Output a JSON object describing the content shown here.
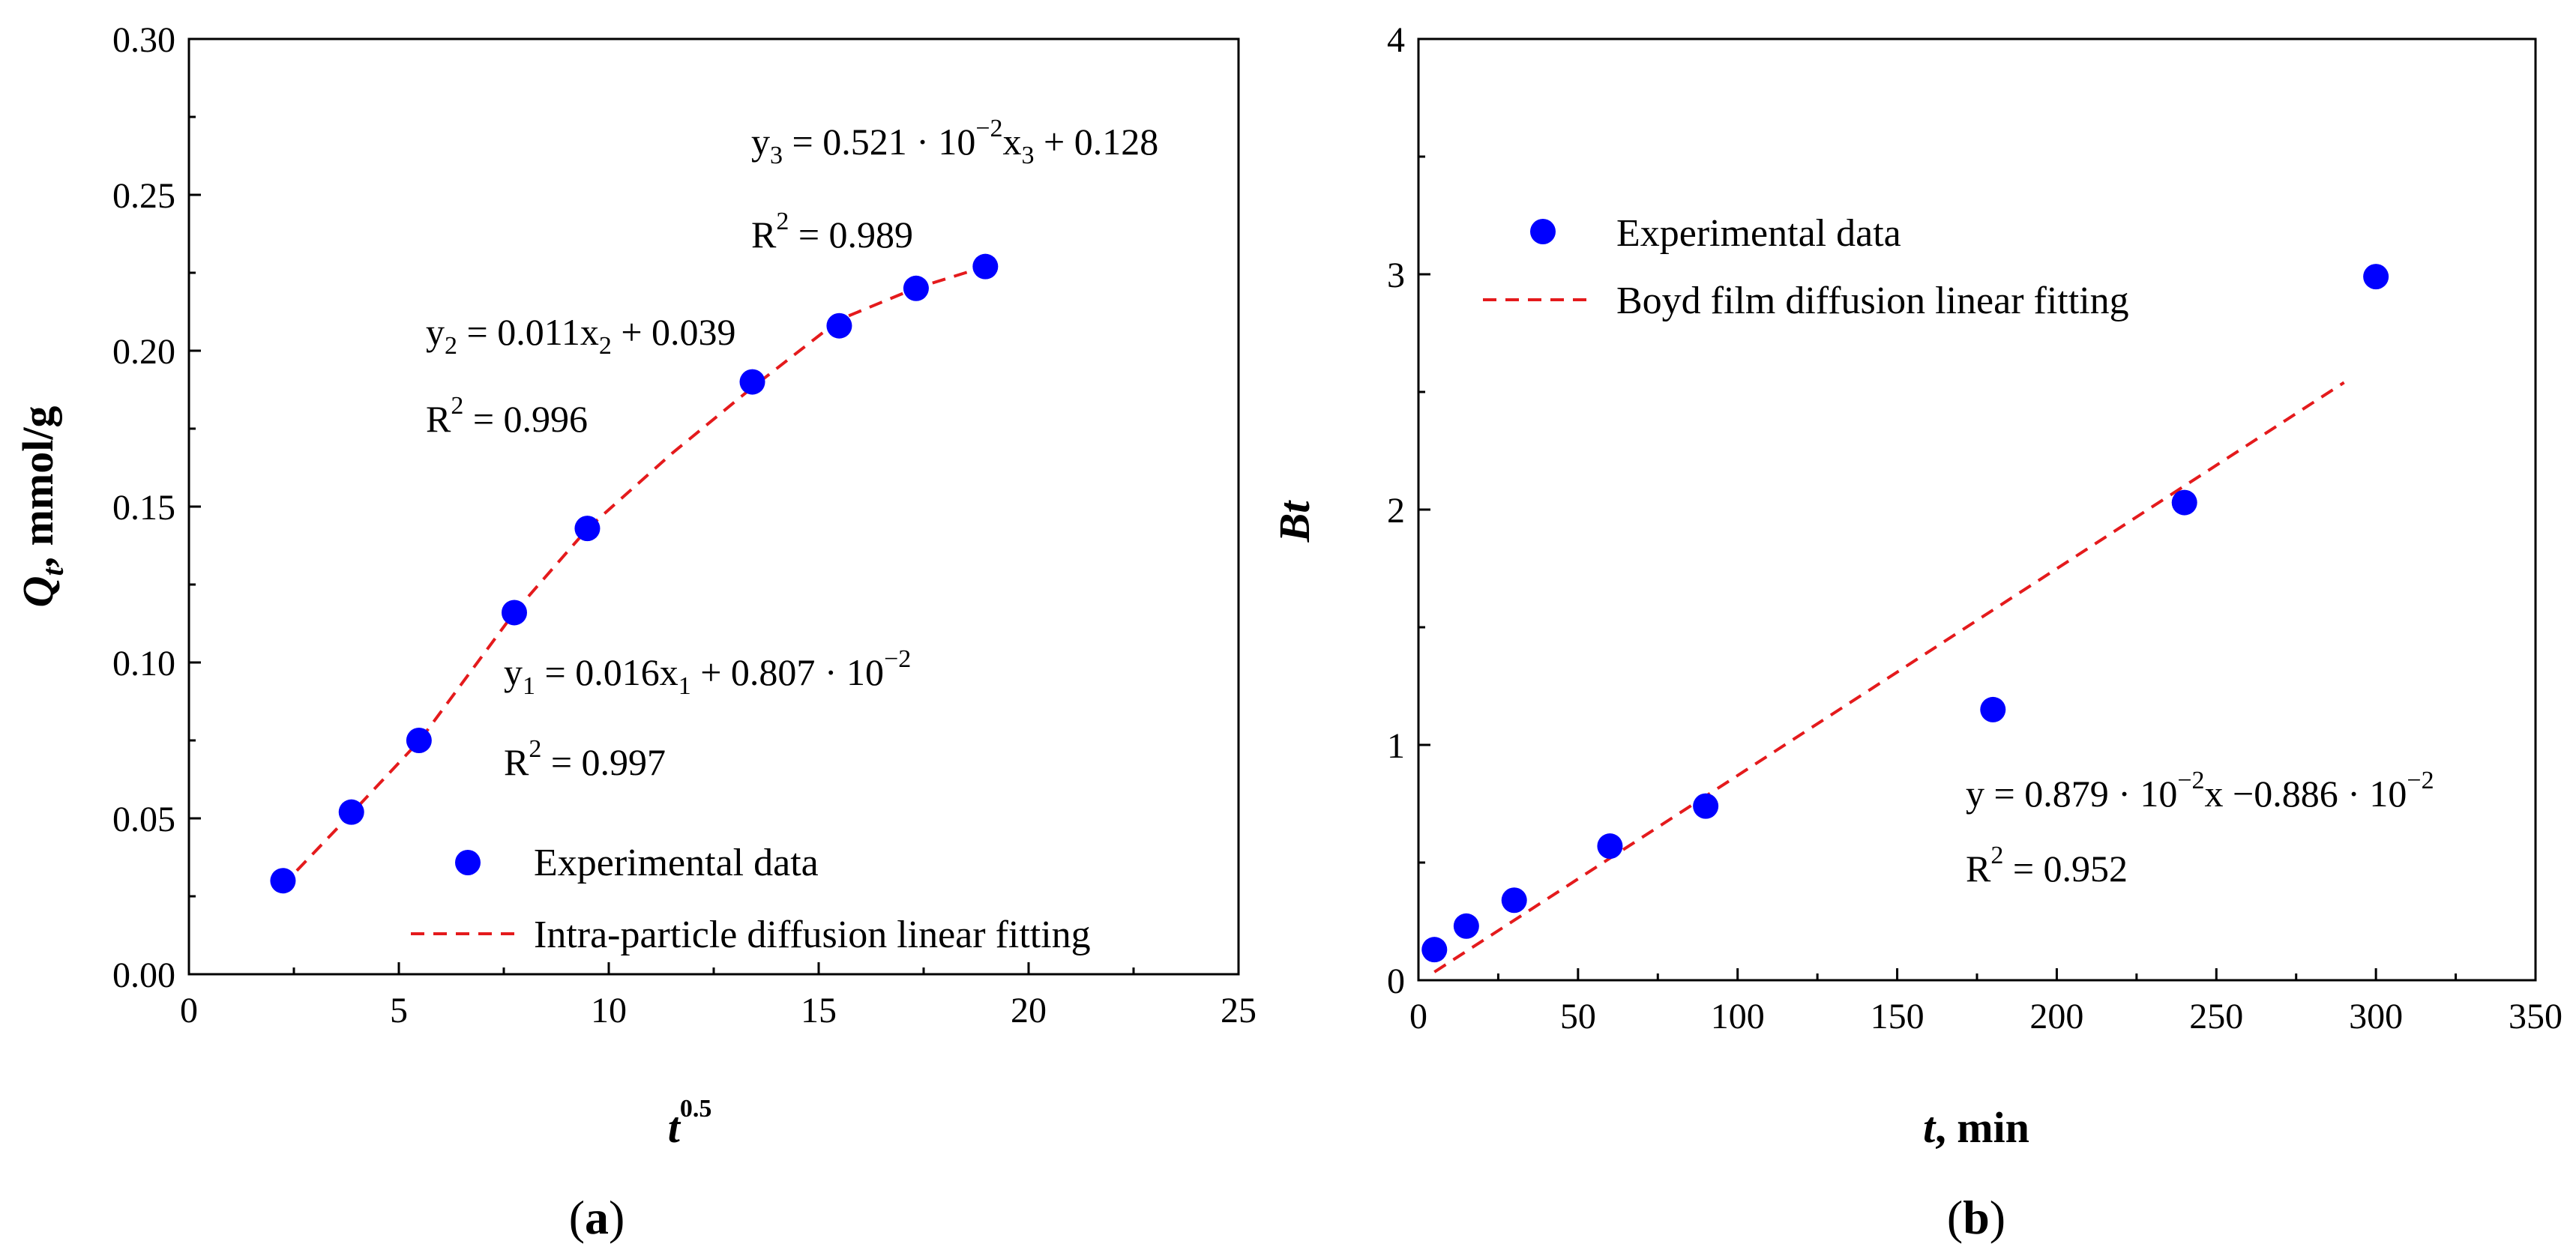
{
  "chart_data": [
    {
      "type": "scatter",
      "panel_label": "a",
      "x": [
        2.24,
        3.87,
        5.48,
        7.75,
        9.49,
        13.42,
        15.49,
        17.32,
        18.97
      ],
      "y": [
        0.03,
        0.052,
        0.075,
        0.116,
        0.143,
        0.19,
        0.208,
        0.22,
        0.227
      ],
      "series": [
        {
          "name": "Experimental data",
          "kind": "scatter",
          "color": "#0000ff",
          "x": [
            2.24,
            3.87,
            5.48,
            7.75,
            9.49,
            13.42,
            15.49,
            17.32,
            18.97
          ],
          "y": [
            0.03,
            0.052,
            0.075,
            0.116,
            0.143,
            0.19,
            0.208,
            0.22,
            0.227
          ]
        },
        {
          "name": "Intra-particle diffusion linear fitting",
          "kind": "dashed-line",
          "color": "#e41a1c",
          "x": [
            2.2,
            3.9,
            5.5,
            7.75,
            9.5,
            11.5,
            13.4,
            15.5,
            17.3,
            18.97
          ],
          "y": [
            0.028,
            0.052,
            0.075,
            0.116,
            0.143,
            0.167,
            0.188,
            0.21,
            0.22,
            0.227
          ]
        }
      ],
      "xlabel": "t",
      "xlabel_sup": "0.5",
      "ylabel": "Q",
      "ylabel_sub": "t",
      "ylabel_tail": ", mmol/g",
      "xlim": [
        0,
        25
      ],
      "ylim": [
        0.0,
        0.3
      ],
      "xticks": [
        "0",
        "5",
        "10",
        "15",
        "20",
        "25"
      ],
      "xtick_values": [
        0,
        5,
        10,
        15,
        20,
        25
      ],
      "yticks": [
        "0.00",
        "0.05",
        "0.10",
        "0.15",
        "0.20",
        "0.25",
        "0.30"
      ],
      "ytick_values": [
        0,
        0.05,
        0.1,
        0.15,
        0.2,
        0.25,
        0.3
      ],
      "legend": {
        "scatter": "Experimental data",
        "line": "Intra-particle diffusion linear fitting"
      },
      "equations": {
        "eq1": {
          "y": "y",
          "ysub": "1",
          "mid": " = 0.016x",
          "xsub": "1",
          "tail": " + 0.807 · 10",
          "sup": "−2"
        },
        "r1": {
          "base": "R",
          "sup": "2",
          "tail": " = 0.997"
        },
        "eq2": {
          "y": "y",
          "ysub": "2",
          "mid": " = 0.011x",
          "xsub": "2",
          "tail": " + 0.039"
        },
        "r2": {
          "base": "R",
          "sup": "2",
          "tail": " = 0.996"
        },
        "eq3": {
          "y": "y",
          "ysub": "3",
          "mid": " = 0.521 · 10",
          "sup": "−2",
          "midx": "x",
          "xsub": "3",
          "tail": " + 0.128"
        },
        "r3": {
          "base": "R",
          "sup": "2",
          "tail": " = 0.989"
        }
      }
    },
    {
      "type": "scatter",
      "panel_label": "b",
      "series": [
        {
          "name": "Experimental data",
          "kind": "scatter",
          "color": "#0000ff",
          "x": [
            5,
            15,
            30,
            60,
            90,
            180,
            240,
            300
          ],
          "y": [
            0.13,
            0.23,
            0.34,
            0.57,
            0.74,
            1.15,
            2.03,
            2.99
          ]
        },
        {
          "name": "Boyd film diffusion linear fitting",
          "kind": "dashed-line",
          "color": "#e41a1c",
          "x": [
            5,
            290
          ],
          "y": [
            0.035,
            2.54
          ]
        }
      ],
      "xlabel": "t",
      "xlabel_tail": ", min",
      "ylabel": "Bt",
      "xlim": [
        0,
        350
      ],
      "ylim": [
        0,
        4
      ],
      "xticks": [
        "0",
        "50",
        "100",
        "150",
        "200",
        "250",
        "300",
        "350"
      ],
      "xtick_values": [
        0,
        50,
        100,
        150,
        200,
        250,
        300,
        350
      ],
      "yticks": [
        "0",
        "1",
        "2",
        "3",
        "4"
      ],
      "ytick_values": [
        0,
        1,
        2,
        3,
        4
      ],
      "legend": {
        "scatter": "Experimental data",
        "line": "Boyd film diffusion linear fitting"
      },
      "equations": {
        "eq": {
          "a": "y = 0.879 · 10",
          "sup1": "−2",
          "b": "x −0.886 · 10",
          "sup2": "−2"
        },
        "r": {
          "base": "R",
          "sup": "2",
          "tail": " = 0.952"
        }
      }
    }
  ],
  "captions": {
    "open": "(",
    "a": "a",
    "b": "b",
    "close": ")"
  },
  "colors": {
    "points": "#0000ff",
    "fit": "#e41a1c"
  }
}
